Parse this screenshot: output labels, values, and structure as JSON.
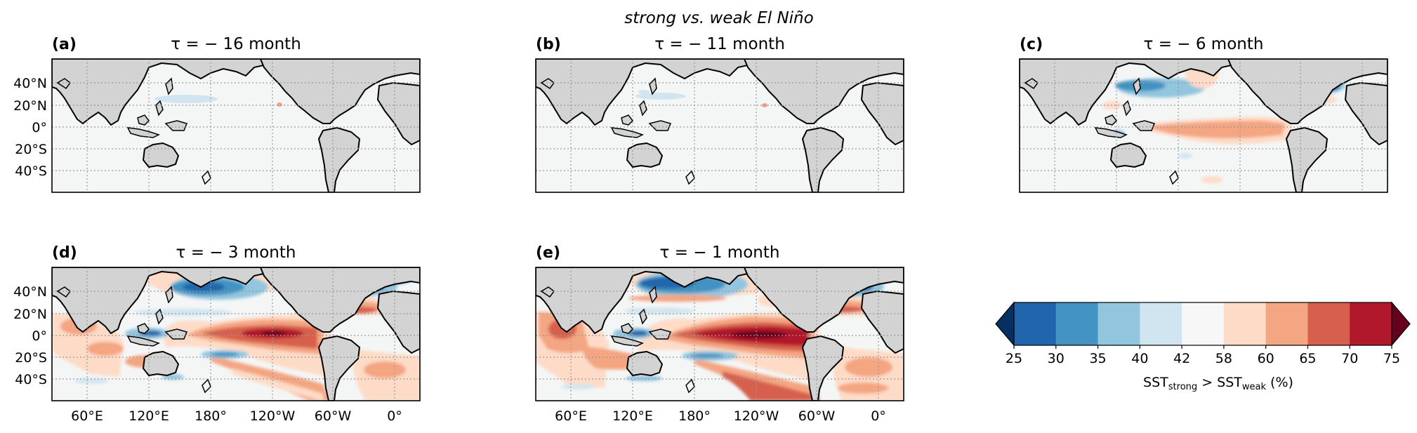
{
  "suptitle": "strong vs. weak El Niño",
  "panels": [
    {
      "letter": "(a)",
      "title": "τ = − 16 month"
    },
    {
      "letter": "(b)",
      "title": "τ = − 11 month"
    },
    {
      "letter": "(c)",
      "title": "τ = − 6 month"
    },
    {
      "letter": "(d)",
      "title": "τ = − 3 month"
    },
    {
      "letter": "(e)",
      "title": "τ = − 1 month"
    }
  ],
  "lat_ticks": [
    "40°N",
    "20°N",
    "0°",
    "20°S",
    "40°S"
  ],
  "lon_ticks": [
    "60°E",
    "120°E",
    "180°",
    "120°W",
    "60°W",
    "0°"
  ],
  "colorbar": {
    "ticks": [
      "25",
      "30",
      "35",
      "40",
      "42",
      "58",
      "60",
      "65",
      "70",
      "75"
    ],
    "label_main": "SST",
    "label_sub1": "strong",
    "label_mid": " > SST",
    "label_sub2": "weak",
    "label_tail": " (%)",
    "colors": [
      "#2166ac",
      "#4393c3",
      "#92c5de",
      "#d1e5f0",
      "#f7f7f7",
      "#fddbc7",
      "#f4a582",
      "#d6604d",
      "#b2182b"
    ],
    "under_color": "#053061",
    "over_color": "#67001f"
  },
  "land_color": "#d3d3d3",
  "ocean_color": "#f4f6f6"
}
